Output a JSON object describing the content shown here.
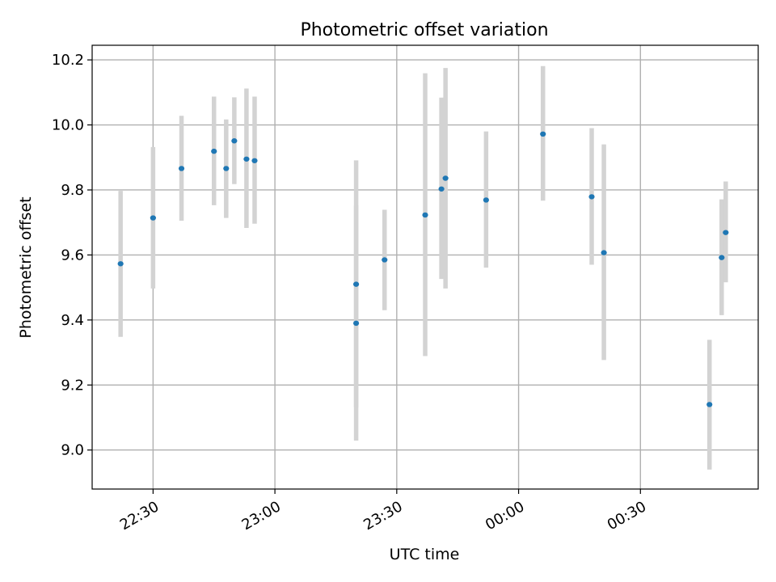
{
  "chart_data": {
    "type": "scatter",
    "title": "Photometric offset variation",
    "xlabel": "UTC time",
    "ylabel": "Photometric offset",
    "x_type": "time",
    "xlim": [
      "22:15",
      "00:59"
    ],
    "ylim": [
      8.88,
      10.245
    ],
    "x_ticks": [
      {
        "time": "22:30",
        "label": "22:30"
      },
      {
        "time": "23:00",
        "label": "23:00"
      },
      {
        "time": "23:30",
        "label": "23:30"
      },
      {
        "time": "00:00",
        "label": "00:00"
      },
      {
        "time": "00:30",
        "label": "00:30"
      }
    ],
    "y_ticks": [
      {
        "value": 9.0,
        "label": "9.0"
      },
      {
        "value": 9.2,
        "label": "9.2"
      },
      {
        "value": 9.4,
        "label": "9.4"
      },
      {
        "value": 9.6,
        "label": "9.6"
      },
      {
        "value": 9.8,
        "label": "9.8"
      },
      {
        "value": 10.0,
        "label": "10.0"
      },
      {
        "value": 10.2,
        "label": "10.2"
      }
    ],
    "grid": true,
    "colors": {
      "point": "#1f77b4",
      "errorbar": "#d3d3d3",
      "grid": "#b0b0b0"
    },
    "points": [
      {
        "time": "22:22",
        "y": 9.573,
        "y_low": 9.348,
        "y_high": 9.797
      },
      {
        "time": "22:30",
        "y": 9.714,
        "y_low": 9.497,
        "y_high": 9.932
      },
      {
        "time": "22:37",
        "y": 9.866,
        "y_low": 9.705,
        "y_high": 10.028
      },
      {
        "time": "22:45",
        "y": 9.919,
        "y_low": 9.753,
        "y_high": 10.087
      },
      {
        "time": "22:48",
        "y": 9.866,
        "y_low": 9.714,
        "y_high": 10.017
      },
      {
        "time": "22:50",
        "y": 9.951,
        "y_low": 9.818,
        "y_high": 10.085
      },
      {
        "time": "22:53",
        "y": 9.895,
        "y_low": 9.683,
        "y_high": 10.112
      },
      {
        "time": "22:55",
        "y": 9.89,
        "y_low": 9.696,
        "y_high": 10.087
      },
      {
        "time": "23:20",
        "y": 9.39,
        "y_low": 9.029,
        "y_high": 9.752
      },
      {
        "time": "23:20",
        "y": 9.51,
        "y_low": 9.131,
        "y_high": 9.891
      },
      {
        "time": "23:27",
        "y": 9.585,
        "y_low": 9.43,
        "y_high": 9.739
      },
      {
        "time": "23:37",
        "y": 9.723,
        "y_low": 9.289,
        "y_high": 10.159
      },
      {
        "time": "23:41",
        "y": 9.803,
        "y_low": 9.526,
        "y_high": 10.084
      },
      {
        "time": "23:42",
        "y": 9.836,
        "y_low": 9.497,
        "y_high": 10.175
      },
      {
        "time": "23:52",
        "y": 9.769,
        "y_low": 9.561,
        "y_high": 9.98
      },
      {
        "time": "00:06",
        "y": 9.972,
        "y_low": 9.767,
        "y_high": 10.181
      },
      {
        "time": "00:18",
        "y": 9.779,
        "y_low": 9.57,
        "y_high": 9.99
      },
      {
        "time": "00:21",
        "y": 9.607,
        "y_low": 9.277,
        "y_high": 9.94
      },
      {
        "time": "00:47",
        "y": 9.14,
        "y_low": 8.94,
        "y_high": 9.339
      },
      {
        "time": "00:50",
        "y": 9.592,
        "y_low": 9.415,
        "y_high": 9.771
      },
      {
        "time": "00:51",
        "y": 9.669,
        "y_low": 9.516,
        "y_high": 9.826
      }
    ]
  }
}
